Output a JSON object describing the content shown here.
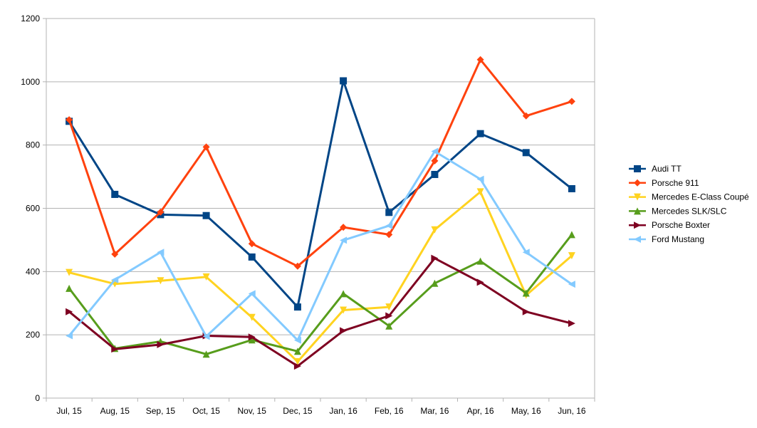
{
  "chart_data": {
    "type": "line",
    "title": "",
    "xlabel": "",
    "ylabel": "",
    "categories": [
      "Jul, 15",
      "Aug, 15",
      "Sep, 15",
      "Oct, 15",
      "Nov, 15",
      "Dec, 15",
      "Jan, 16",
      "Feb, 16",
      "Mar, 16",
      "Apr, 16",
      "May, 16",
      "Jun, 16"
    ],
    "ylim": [
      0,
      1200
    ],
    "yticks": [
      0,
      200,
      400,
      600,
      800,
      1000,
      1200
    ],
    "grid": true,
    "legend_position": "right",
    "series": [
      {
        "name": "Audi TT",
        "color": "#004586",
        "marker": "square",
        "values": [
          875,
          644,
          580,
          577,
          446,
          288,
          1003,
          587,
          707,
          836,
          776,
          662
        ]
      },
      {
        "name": "Porsche 911",
        "color": "#ff420e",
        "marker": "diamond",
        "values": [
          880,
          455,
          588,
          794,
          488,
          417,
          540,
          517,
          750,
          1070,
          892,
          938
        ]
      },
      {
        "name": "Mercedes E-Class Coupé",
        "color": "#ffd320",
        "marker": "triangle-down",
        "values": [
          397,
          361,
          371,
          383,
          255,
          115,
          278,
          288,
          532,
          652,
          325,
          450
        ]
      },
      {
        "name": "Mercedes SLK/SLC",
        "color": "#579d1c",
        "marker": "triangle-up",
        "values": [
          347,
          157,
          179,
          139,
          184,
          148,
          330,
          228,
          363,
          433,
          332,
          517
        ]
      },
      {
        "name": "Porsche Boxter",
        "color": "#7e0021",
        "marker": "triangle-right",
        "values": [
          273,
          155,
          169,
          197,
          193,
          101,
          213,
          260,
          442,
          366,
          273,
          236
        ]
      },
      {
        "name": "Ford Mustang",
        "color": "#83caff",
        "marker": "triangle-left",
        "values": [
          197,
          374,
          461,
          195,
          330,
          183,
          499,
          545,
          780,
          692,
          461,
          360
        ]
      }
    ]
  }
}
